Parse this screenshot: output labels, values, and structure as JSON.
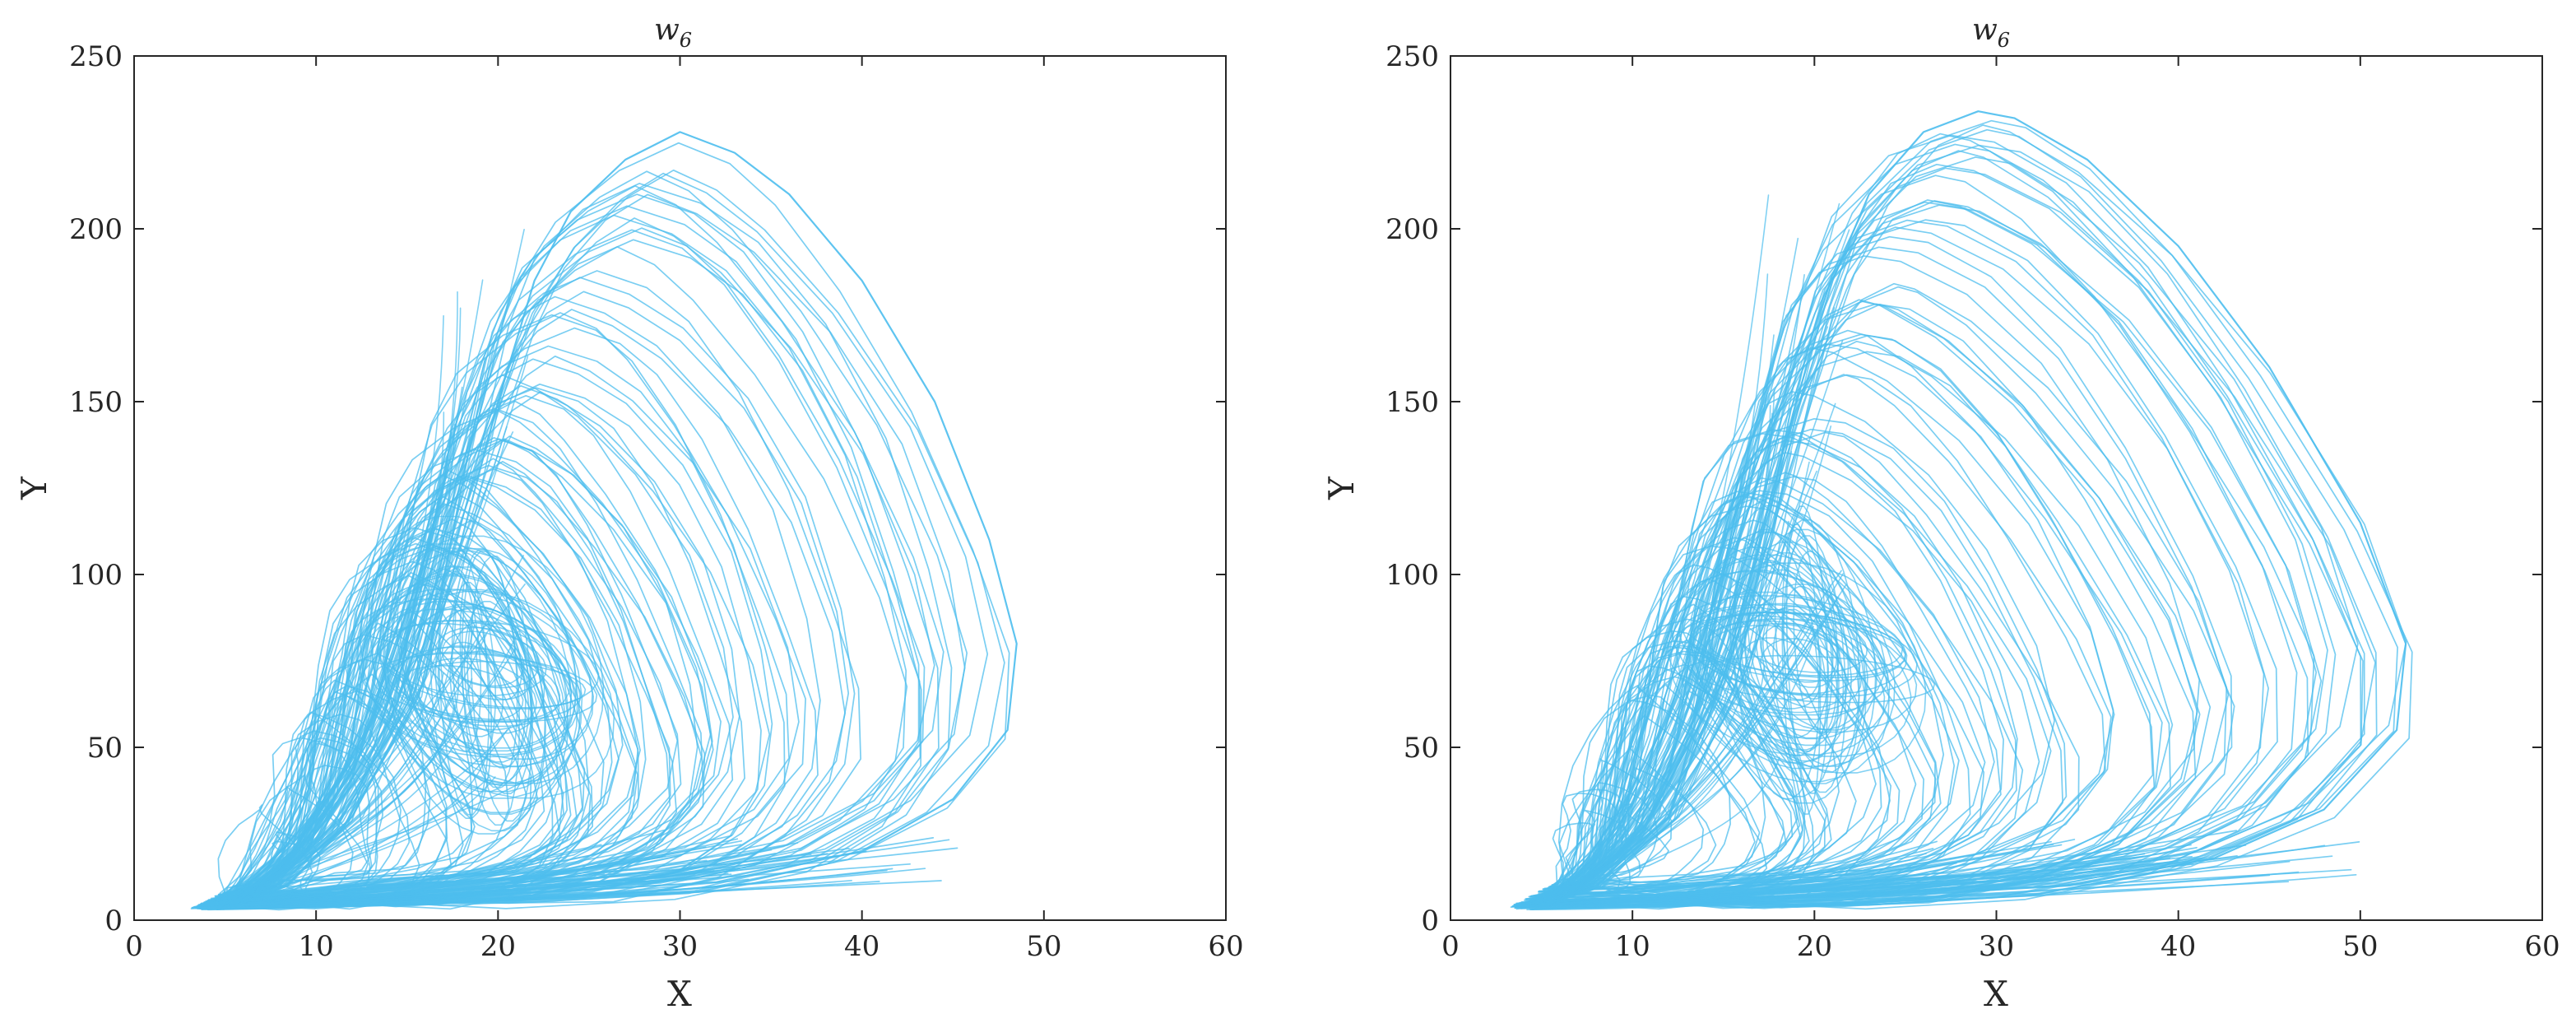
{
  "chart_data": [
    {
      "type": "line",
      "title_base": "w",
      "title_sub": "6",
      "xlabel": "X",
      "ylabel": "Y",
      "xlim": [
        0,
        60
      ],
      "ylim": [
        0,
        250
      ],
      "xticks": [
        "0",
        "10",
        "20",
        "30",
        "40",
        "50",
        "60"
      ],
      "yticks": [
        "0",
        "50",
        "100",
        "150",
        "200",
        "250"
      ],
      "grid": false,
      "color": "#4DBEEE",
      "series": [
        {
          "x": [
            4,
            5,
            8,
            12,
            16,
            18,
            20,
            22,
            24,
            27,
            30,
            33,
            36,
            40,
            44,
            47,
            48.5,
            48,
            45,
            40,
            32,
            22,
            12,
            6,
            4
          ],
          "y": [
            4,
            5,
            10,
            30,
            70,
            110,
            150,
            185,
            205,
            220,
            228,
            222,
            210,
            185,
            150,
            110,
            80,
            55,
            35,
            20,
            11,
            8,
            6,
            5,
            4
          ]
        }
      ],
      "x_extent": [
        3.5,
        49
      ],
      "y_extent": [
        3,
        229
      ],
      "inner_focus": {
        "x": 19,
        "y": 70
      }
    },
    {
      "type": "line",
      "title_base": "w",
      "title_sub": "6",
      "xlabel": "X",
      "ylabel": "Y",
      "xlim": [
        0,
        60
      ],
      "ylim": [
        0,
        250
      ],
      "xticks": [
        "0",
        "10",
        "20",
        "30",
        "40",
        "50",
        "60"
      ],
      "yticks": [
        "0",
        "50",
        "100",
        "150",
        "200",
        "250"
      ],
      "grid": false,
      "color": "#4DBEEE",
      "series": [
        {
          "x": [
            4,
            5,
            8,
            12,
            15,
            17,
            19,
            21,
            23,
            26,
            29,
            31,
            35,
            40,
            45,
            50,
            52.5,
            52,
            48,
            42,
            34,
            24,
            13,
            6,
            4
          ],
          "y": [
            4,
            5,
            10,
            30,
            70,
            110,
            150,
            185,
            210,
            228,
            234,
            232,
            220,
            195,
            160,
            115,
            80,
            55,
            32,
            18,
            10,
            7,
            6,
            5,
            4
          ]
        }
      ],
      "x_extent": [
        3.5,
        52.5
      ],
      "y_extent": [
        3,
        235
      ],
      "inner_focus": {
        "x": 19,
        "y": 75
      }
    }
  ]
}
